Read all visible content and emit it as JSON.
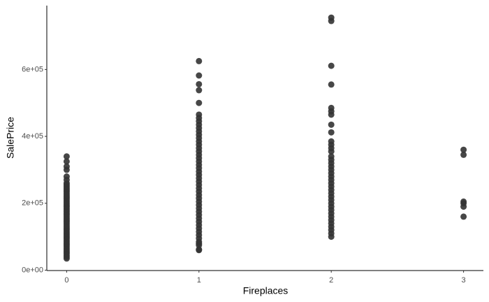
{
  "chart_data": {
    "type": "scatter",
    "x_label": "Fireplaces",
    "y_label": "SalePrice",
    "xlim": [
      -0.15,
      3.15
    ],
    "xticks": [
      0,
      1,
      2,
      3
    ],
    "ylim": [
      -1100,
      791000
    ],
    "yticks": [
      {
        "value": 0,
        "label": "0e+00"
      },
      {
        "value": 200000,
        "label": "2e+05"
      },
      {
        "value": 400000,
        "label": "4e+05"
      },
      {
        "value": 600000,
        "label": "6e+05"
      }
    ],
    "color": "#333333",
    "x": [
      0,
      0,
      0,
      0,
      0,
      0,
      0,
      0,
      0,
      0,
      0,
      0,
      0,
      0,
      0,
      0,
      0,
      0,
      0,
      0,
      0,
      0,
      0,
      0,
      0,
      0,
      0,
      0,
      0,
      0,
      0,
      0,
      0,
      0,
      0,
      0,
      0,
      0,
      0,
      0,
      0,
      0,
      0,
      0,
      0,
      0,
      0,
      0,
      0,
      0,
      0,
      0,
      1,
      1,
      1,
      1,
      1,
      1,
      1,
      1,
      1,
      1,
      1,
      1,
      1,
      1,
      1,
      1,
      1,
      1,
      1,
      1,
      1,
      1,
      1,
      1,
      1,
      1,
      1,
      1,
      1,
      1,
      1,
      1,
      1,
      1,
      1,
      1,
      1,
      1,
      1,
      1,
      1,
      1,
      1,
      1,
      1,
      1,
      1,
      1,
      2,
      2,
      2,
      2,
      2,
      2,
      2,
      2,
      2,
      2,
      2,
      2,
      2,
      2,
      2,
      2,
      2,
      2,
      2,
      2,
      2,
      2,
      2,
      2,
      2,
      2,
      2,
      2,
      2,
      2,
      2,
      2,
      2,
      2,
      2,
      2,
      2,
      2,
      3,
      3,
      3,
      3,
      3,
      3
    ],
    "y": [
      34900,
      40000,
      45000,
      50000,
      55000,
      60000,
      65000,
      70000,
      75000,
      80000,
      85000,
      90000,
      95000,
      100000,
      105000,
      110000,
      115000,
      120000,
      125000,
      130000,
      135000,
      140000,
      145000,
      150000,
      155000,
      160000,
      165000,
      170000,
      175000,
      180000,
      185000,
      190000,
      195000,
      200000,
      205000,
      210000,
      215000,
      220000,
      225000,
      230000,
      235000,
      240000,
      245000,
      250000,
      255000,
      260000,
      270000,
      280000,
      300000,
      310000,
      325000,
      340000,
      60000,
      62000,
      75000,
      80000,
      85000,
      95000,
      105000,
      115000,
      125000,
      135000,
      145000,
      155000,
      165000,
      175000,
      185000,
      195000,
      205000,
      215000,
      225000,
      235000,
      245000,
      255000,
      265000,
      275000,
      285000,
      295000,
      305000,
      315000,
      325000,
      335000,
      345000,
      355000,
      365000,
      375000,
      385000,
      395000,
      405000,
      415000,
      425000,
      435000,
      445000,
      455000,
      465000,
      500000,
      538000,
      556000,
      582000,
      625000,
      100000,
      110000,
      120000,
      130000,
      140000,
      150000,
      160000,
      170000,
      180000,
      190000,
      200000,
      210000,
      220000,
      230000,
      240000,
      250000,
      260000,
      270000,
      280000,
      290000,
      300000,
      310000,
      320000,
      330000,
      340000,
      355000,
      365000,
      375000,
      385000,
      412000,
      435000,
      465000,
      475000,
      485000,
      555000,
      611000,
      745000,
      755000,
      160000,
      190000,
      200000,
      205000,
      345000,
      360000
    ]
  }
}
